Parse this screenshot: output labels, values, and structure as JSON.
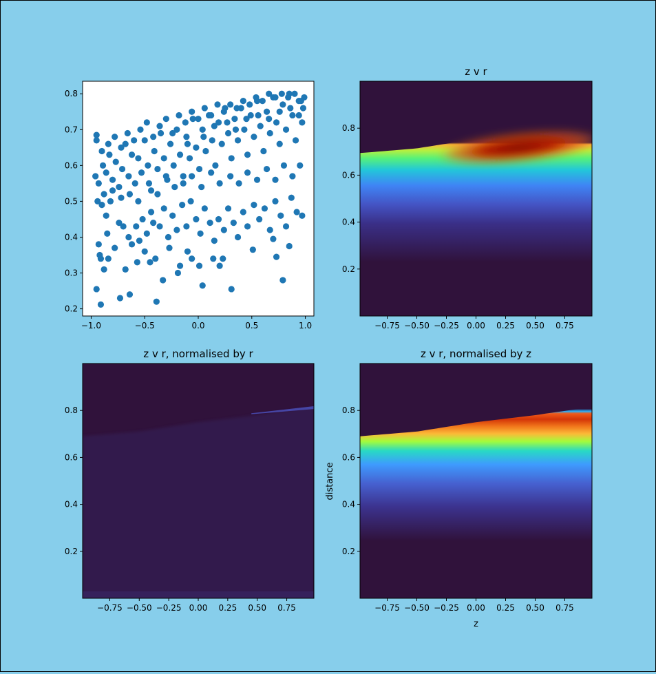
{
  "figure": {
    "background": "#87CEEB"
  },
  "chart_data": [
    {
      "id": "scatter",
      "type": "scatter",
      "title": "",
      "xlabel": "",
      "ylabel": "",
      "xlim": [
        -1.08,
        1.08
      ],
      "ylim": [
        0.18,
        0.835
      ],
      "xticks": [
        -1.0,
        -0.5,
        0.0,
        0.5,
        1.0
      ],
      "xtick_labels": [
        "−1.0",
        "−0.5",
        "0.0",
        "0.5",
        "1.0"
      ],
      "yticks": [
        0.2,
        0.3,
        0.4,
        0.5,
        0.6,
        0.7,
        0.8
      ],
      "ytick_labels": [
        "0.2",
        "0.3",
        "0.4",
        "0.5",
        "0.6",
        "0.7",
        "0.8"
      ],
      "color": "#1F77B4",
      "points": [
        [
          -0.95,
          0.685
        ],
        [
          -0.95,
          0.67
        ],
        [
          -0.93,
          0.38
        ],
        [
          -0.92,
          0.35
        ],
        [
          -0.91,
          0.34
        ],
        [
          -0.95,
          0.255
        ],
        [
          -0.91,
          0.212
        ],
        [
          -0.88,
          0.31
        ],
        [
          -0.84,
          0.34
        ],
        [
          -0.85,
          0.41
        ],
        [
          -0.78,
          0.37
        ],
        [
          -0.73,
          0.23
        ],
        [
          -0.64,
          0.24
        ],
        [
          -0.68,
          0.31
        ],
        [
          -0.57,
          0.33
        ],
        [
          -0.5,
          0.36
        ],
        [
          -0.45,
          0.33
        ],
        [
          -0.39,
          0.22
        ],
        [
          -0.4,
          0.34
        ],
        [
          -0.33,
          0.28
        ],
        [
          -0.27,
          0.37
        ],
        [
          -0.19,
          0.3
        ],
        [
          -0.17,
          0.32
        ],
        [
          -0.1,
          0.36
        ],
        [
          -0.06,
          0.34
        ],
        [
          0.01,
          0.32
        ],
        [
          0.04,
          0.265
        ],
        [
          0.14,
          0.34
        ],
        [
          0.2,
          0.32
        ],
        [
          0.23,
          0.34
        ],
        [
          0.31,
          0.255
        ],
        [
          0.51,
          0.365
        ],
        [
          0.7,
          0.395
        ],
        [
          0.73,
          0.345
        ],
        [
          0.79,
          0.28
        ],
        [
          0.85,
          0.375
        ],
        [
          -0.94,
          0.5
        ],
        [
          -0.9,
          0.49
        ],
        [
          -0.86,
          0.46
        ],
        [
          -0.82,
          0.5
        ],
        [
          -0.74,
          0.44
        ],
        [
          -0.7,
          0.43
        ],
        [
          -0.65,
          0.4
        ],
        [
          -0.62,
          0.38
        ],
        [
          -0.58,
          0.43
        ],
        [
          -0.55,
          0.39
        ],
        [
          -0.52,
          0.45
        ],
        [
          -0.48,
          0.41
        ],
        [
          -0.44,
          0.47
        ],
        [
          -0.42,
          0.44
        ],
        [
          -0.36,
          0.43
        ],
        [
          -0.32,
          0.48
        ],
        [
          -0.28,
          0.4
        ],
        [
          -0.24,
          0.46
        ],
        [
          -0.2,
          0.42
        ],
        [
          -0.15,
          0.49
        ],
        [
          -0.11,
          0.43
        ],
        [
          -0.07,
          0.5
        ],
        [
          -0.02,
          0.45
        ],
        [
          0.02,
          0.41
        ],
        [
          0.06,
          0.48
        ],
        [
          0.11,
          0.44
        ],
        [
          0.15,
          0.39
        ],
        [
          0.19,
          0.45
        ],
        [
          0.24,
          0.42
        ],
        [
          0.28,
          0.48
        ],
        [
          0.33,
          0.44
        ],
        [
          0.37,
          0.4
        ],
        [
          0.42,
          0.47
        ],
        [
          0.46,
          0.43
        ],
        [
          0.52,
          0.49
        ],
        [
          0.57,
          0.45
        ],
        [
          0.62,
          0.48
        ],
        [
          0.67,
          0.42
        ],
        [
          0.72,
          0.5
        ],
        [
          0.77,
          0.46
        ],
        [
          0.82,
          0.43
        ],
        [
          0.87,
          0.51
        ],
        [
          0.92,
          0.47
        ],
        [
          0.97,
          0.46
        ],
        [
          -0.96,
          0.57
        ],
        [
          -0.93,
          0.55
        ],
        [
          -0.89,
          0.6
        ],
        [
          -0.86,
          0.58
        ],
        [
          -0.83,
          0.63
        ],
        [
          -0.8,
          0.56
        ],
        [
          -0.77,
          0.61
        ],
        [
          -0.74,
          0.54
        ],
        [
          -0.71,
          0.59
        ],
        [
          -0.68,
          0.66
        ],
        [
          -0.65,
          0.57
        ],
        [
          -0.62,
          0.63
        ],
        [
          -0.59,
          0.55
        ],
        [
          -0.56,
          0.62
        ],
        [
          -0.53,
          0.58
        ],
        [
          -0.5,
          0.67
        ],
        [
          -0.47,
          0.6
        ],
        [
          -0.44,
          0.53
        ],
        [
          -0.41,
          0.64
        ],
        [
          -0.38,
          0.59
        ],
        [
          -0.35,
          0.69
        ],
        [
          -0.32,
          0.62
        ],
        [
          -0.29,
          0.56
        ],
        [
          -0.26,
          0.66
        ],
        [
          -0.23,
          0.6
        ],
        [
          -0.2,
          0.7
        ],
        [
          -0.17,
          0.63
        ],
        [
          -0.14,
          0.57
        ],
        [
          -0.11,
          0.68
        ],
        [
          -0.08,
          0.62
        ],
        [
          -0.05,
          0.73
        ],
        [
          -0.02,
          0.65
        ],
        [
          0.01,
          0.59
        ],
        [
          0.04,
          0.7
        ],
        [
          0.07,
          0.64
        ],
        [
          0.1,
          0.74
        ],
        [
          0.13,
          0.67
        ],
        [
          0.16,
          0.6
        ],
        [
          0.19,
          0.72
        ],
        [
          0.22,
          0.66
        ],
        [
          0.25,
          0.76
        ],
        [
          0.28,
          0.69
        ],
        [
          0.31,
          0.62
        ],
        [
          0.34,
          0.73
        ],
        [
          0.37,
          0.67
        ],
        [
          0.4,
          0.76
        ],
        [
          0.43,
          0.7
        ],
        [
          0.46,
          0.63
        ],
        [
          0.49,
          0.74
        ],
        [
          0.52,
          0.68
        ],
        [
          0.55,
          0.78
        ],
        [
          0.58,
          0.71
        ],
        [
          0.61,
          0.64
        ],
        [
          0.64,
          0.75
        ],
        [
          0.67,
          0.69
        ],
        [
          0.7,
          0.79
        ],
        [
          0.73,
          0.72
        ],
        [
          0.76,
          0.66
        ],
        [
          0.79,
          0.77
        ],
        [
          0.82,
          0.7
        ],
        [
          0.85,
          0.8
        ],
        [
          0.88,
          0.74
        ],
        [
          0.91,
          0.67
        ],
        [
          0.94,
          0.78
        ],
        [
          0.97,
          0.72
        ],
        [
          0.99,
          0.79
        ],
        [
          -0.9,
          0.64
        ],
        [
          -0.84,
          0.66
        ],
        [
          -0.78,
          0.68
        ],
        [
          -0.72,
          0.65
        ],
        [
          -0.66,
          0.69
        ],
        [
          -0.6,
          0.67
        ],
        [
          -0.54,
          0.7
        ],
        [
          -0.48,
          0.72
        ],
        [
          -0.42,
          0.68
        ],
        [
          -0.36,
          0.71
        ],
        [
          -0.3,
          0.73
        ],
        [
          -0.24,
          0.69
        ],
        [
          -0.18,
          0.74
        ],
        [
          -0.12,
          0.72
        ],
        [
          -0.06,
          0.75
        ],
        [
          0.0,
          0.73
        ],
        [
          0.06,
          0.76
        ],
        [
          0.12,
          0.74
        ],
        [
          0.18,
          0.77
        ],
        [
          0.24,
          0.75
        ],
        [
          0.3,
          0.77
        ],
        [
          0.36,
          0.76
        ],
        [
          0.42,
          0.78
        ],
        [
          0.48,
          0.77
        ],
        [
          0.54,
          0.79
        ],
        [
          0.6,
          0.78
        ],
        [
          0.66,
          0.8
        ],
        [
          0.72,
          0.79
        ],
        [
          0.78,
          0.8
        ],
        [
          0.84,
          0.79
        ],
        [
          0.9,
          0.8
        ],
        [
          0.96,
          0.78
        ],
        [
          -0.88,
          0.52
        ],
        [
          -0.8,
          0.53
        ],
        [
          -0.72,
          0.51
        ],
        [
          -0.64,
          0.52
        ],
        [
          -0.56,
          0.5
        ],
        [
          -0.46,
          0.55
        ],
        [
          -0.38,
          0.52
        ],
        [
          -0.3,
          0.57
        ],
        [
          -0.22,
          0.54
        ],
        [
          -0.14,
          0.55
        ],
        [
          -0.06,
          0.57
        ],
        [
          0.03,
          0.54
        ],
        [
          0.12,
          0.58
        ],
        [
          0.2,
          0.55
        ],
        [
          0.3,
          0.57
        ],
        [
          0.38,
          0.55
        ],
        [
          0.46,
          0.58
        ],
        [
          0.55,
          0.56
        ],
        [
          0.64,
          0.59
        ],
        [
          0.72,
          0.56
        ],
        [
          0.8,
          0.6
        ],
        [
          0.88,
          0.57
        ],
        [
          0.95,
          0.6
        ],
        [
          -0.1,
          0.66
        ],
        [
          0.05,
          0.68
        ],
        [
          0.15,
          0.71
        ],
        [
          0.27,
          0.72
        ],
        [
          0.35,
          0.7
        ],
        [
          0.45,
          0.73
        ],
        [
          0.56,
          0.74
        ],
        [
          0.66,
          0.73
        ],
        [
          0.76,
          0.75
        ],
        [
          0.86,
          0.76
        ],
        [
          0.94,
          0.74
        ],
        [
          0.98,
          0.76
        ]
      ]
    },
    {
      "id": "heatmap-zr",
      "type": "heatmap",
      "title": "z v r",
      "xlabel": "",
      "ylabel": "",
      "xlim": [
        -0.98,
        0.98
      ],
      "ylim": [
        0.0,
        1.0
      ],
      "xticks": [
        -0.75,
        -0.5,
        -0.25,
        0.0,
        0.25,
        0.5,
        0.75
      ],
      "xtick_labels": [
        "−0.75",
        "−0.50",
        "−0.25",
        "0.00",
        "0.25",
        "0.50",
        "0.75"
      ],
      "yticks": [
        0.2,
        0.4,
        0.6,
        0.8
      ],
      "ytick_labels": [
        "0.2",
        "0.4",
        "0.6",
        "0.8"
      ],
      "colormap": "turbo",
      "ridge_z": [
        -0.98,
        -0.5,
        0.0,
        0.5,
        0.98
      ],
      "ridge_r": [
        0.69,
        0.71,
        0.75,
        0.78,
        0.815
      ],
      "hot_spot": {
        "z": 0.1,
        "r": 0.71
      }
    },
    {
      "id": "heatmap-zr-norm-r",
      "type": "heatmap",
      "title": "z v r, normalised by r",
      "xlabel": "",
      "ylabel": "",
      "xlim": [
        -0.98,
        0.98
      ],
      "ylim": [
        0.0,
        1.0
      ],
      "xticks": [
        -0.75,
        -0.5,
        -0.25,
        0.0,
        0.25,
        0.5,
        0.75
      ],
      "xtick_labels": [
        "−0.75",
        "−0.50",
        "−0.25",
        "0.00",
        "0.25",
        "0.50",
        "0.75"
      ],
      "yticks": [
        0.2,
        0.4,
        0.6,
        0.8
      ],
      "ytick_labels": [
        "0.2",
        "0.4",
        "0.6",
        "0.8"
      ],
      "colormap": "turbo"
    },
    {
      "id": "heatmap-zr-norm-z",
      "type": "heatmap",
      "title": "z v r, normalised by z",
      "xlabel": "z",
      "ylabel": "distance",
      "xlim": [
        -0.98,
        0.98
      ],
      "ylim": [
        0.0,
        1.0
      ],
      "xticks": [
        -0.75,
        -0.5,
        -0.25,
        0.0,
        0.25,
        0.5,
        0.75
      ],
      "xtick_labels": [
        "−0.75",
        "−0.50",
        "−0.25",
        "0.00",
        "0.25",
        "0.50",
        "0.75"
      ],
      "yticks": [
        0.2,
        0.4,
        0.6,
        0.8
      ],
      "ytick_labels": [
        "0.2",
        "0.4",
        "0.6",
        "0.8"
      ],
      "colormap": "turbo"
    }
  ]
}
